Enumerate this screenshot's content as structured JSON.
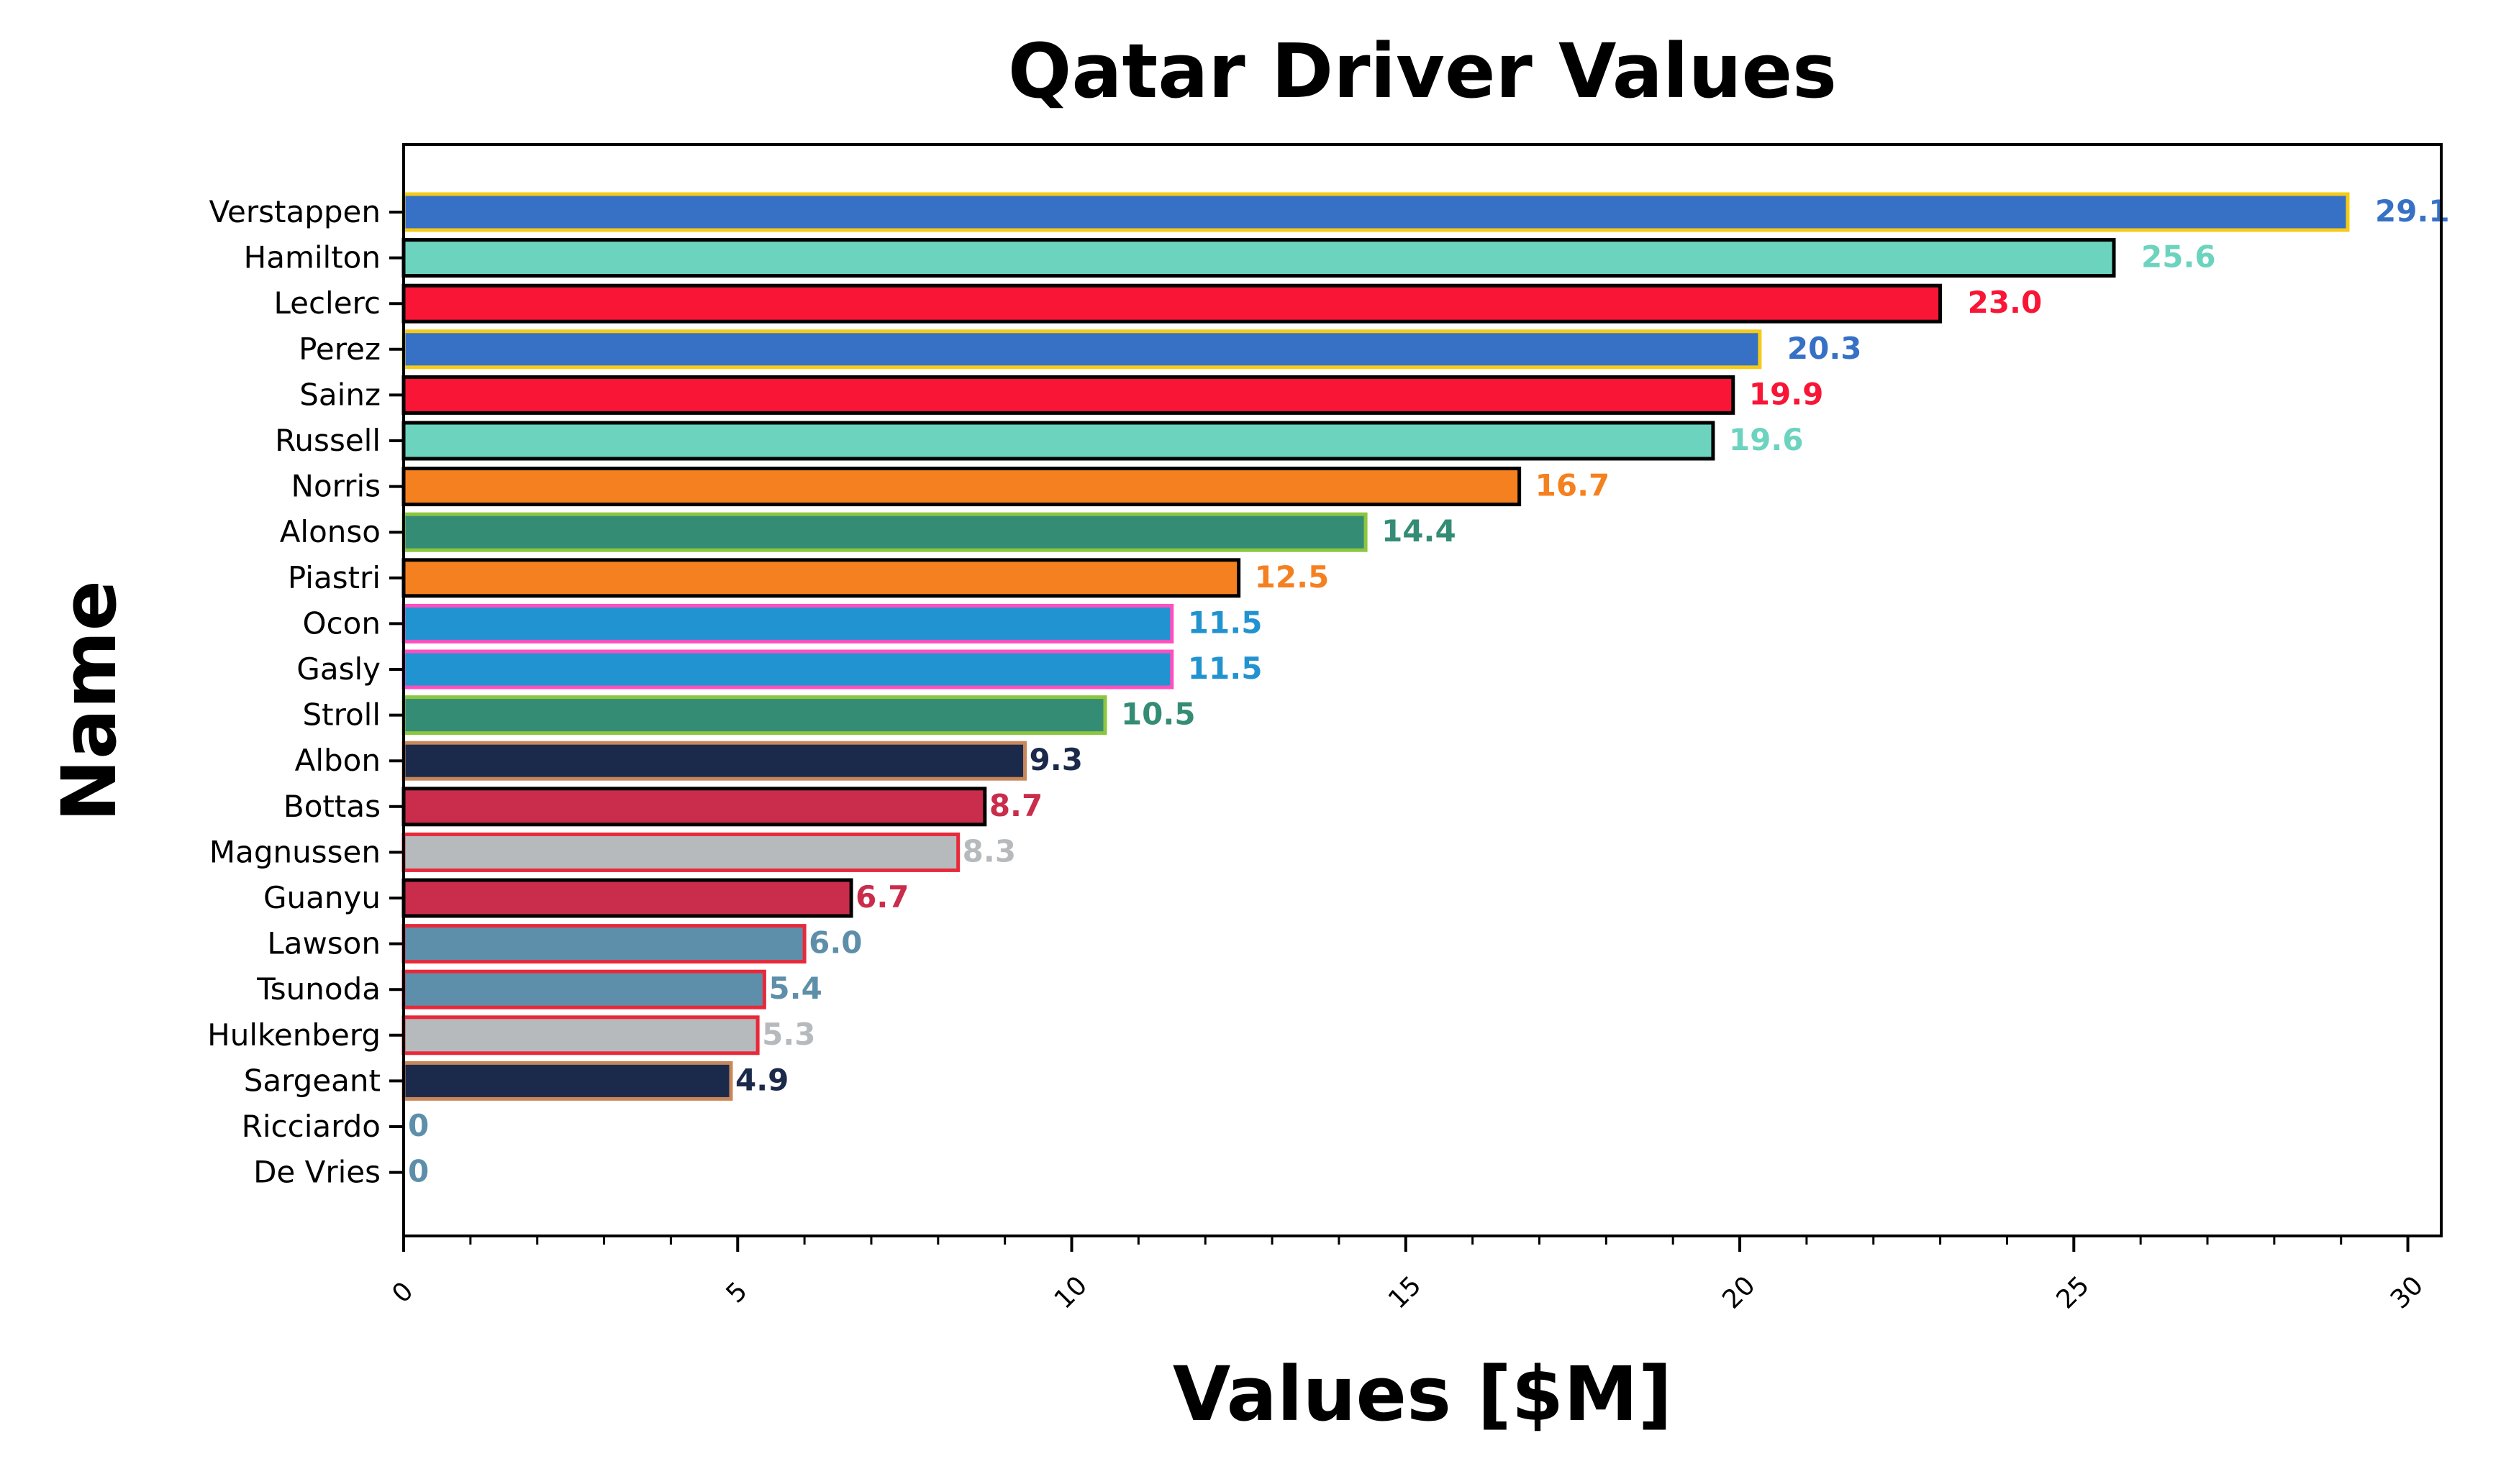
{
  "chart_data": {
    "type": "bar",
    "orientation": "horizontal",
    "title": "Qatar Driver Values",
    "xlabel": "Values [$M]",
    "ylabel": "Name",
    "xlim": [
      0,
      30.5
    ],
    "xticks": [
      0,
      5,
      10,
      15,
      20,
      25,
      30
    ],
    "xtick_labels": [
      "0",
      "5",
      "10",
      "15",
      "20",
      "25",
      "30"
    ],
    "grid": false,
    "categories": [
      "Verstappen",
      "Hamilton",
      "Leclerc",
      "Perez",
      "Sainz",
      "Russell",
      "Norris",
      "Alonso",
      "Piastri",
      "Ocon",
      "Gasly",
      "Stroll",
      "Albon",
      "Bottas",
      "Magnussen",
      "Guanyu",
      "Lawson",
      "Tsunoda",
      "Hulkenberg",
      "Sargeant",
      "Ricciardo",
      "De Vries"
    ],
    "values": [
      29.1,
      25.6,
      23.0,
      20.3,
      19.9,
      19.6,
      16.7,
      14.4,
      12.5,
      11.5,
      11.5,
      10.5,
      9.3,
      8.7,
      8.3,
      6.7,
      6.0,
      5.4,
      5.3,
      4.9,
      0,
      0
    ],
    "value_labels": [
      "29.1",
      "25.6",
      "23.0",
      "20.3",
      "19.9",
      "19.6",
      "16.7",
      "14.4",
      "12.5",
      "11.5",
      "11.5",
      "10.5",
      "9.3",
      "8.7",
      "8.3",
      "6.7",
      "6.0",
      "5.4",
      "5.3",
      "4.9",
      "0",
      "0"
    ],
    "fill_colors": [
      "#3671C6",
      "#6CD3BF",
      "#F91536",
      "#3671C6",
      "#F91536",
      "#6CD3BF",
      "#F58020",
      "#358C75",
      "#F58020",
      "#2293D1",
      "#2293D1",
      "#358C75",
      "#1B2A4B",
      "#C92D4B",
      "#B6BABD",
      "#C92D4B",
      "#5E8FAA",
      "#5E8FAA",
      "#B6BABD",
      "#1B2A4B",
      "#5E8FAA",
      "#5E8FAA"
    ],
    "edge_colors": [
      "#F5CB17",
      "#000000",
      "#000000",
      "#F5CB17",
      "#000000",
      "#000000",
      "#000000",
      "#8CC63E",
      "#000000",
      "#FF4FBF",
      "#FF4FBF",
      "#8CC63E",
      "#C8875A",
      "#000000",
      "#E8293A",
      "#000000",
      "#E8293A",
      "#E8293A",
      "#E8293A",
      "#C8875A",
      "#000000",
      "#000000"
    ],
    "label_colors": [
      "#3671C6",
      "#6CD3BF",
      "#F91536",
      "#3671C6",
      "#F91536",
      "#6CD3BF",
      "#F58020",
      "#358C75",
      "#F58020",
      "#2293D1",
      "#2293D1",
      "#358C75",
      "#1B2A4B",
      "#C92D4B",
      "#B6BABD",
      "#C92D4B",
      "#5E8FAA",
      "#5E8FAA",
      "#B6BABD",
      "#1B2A4B",
      "#5E8FAA",
      "#5E8FAA"
    ]
  }
}
